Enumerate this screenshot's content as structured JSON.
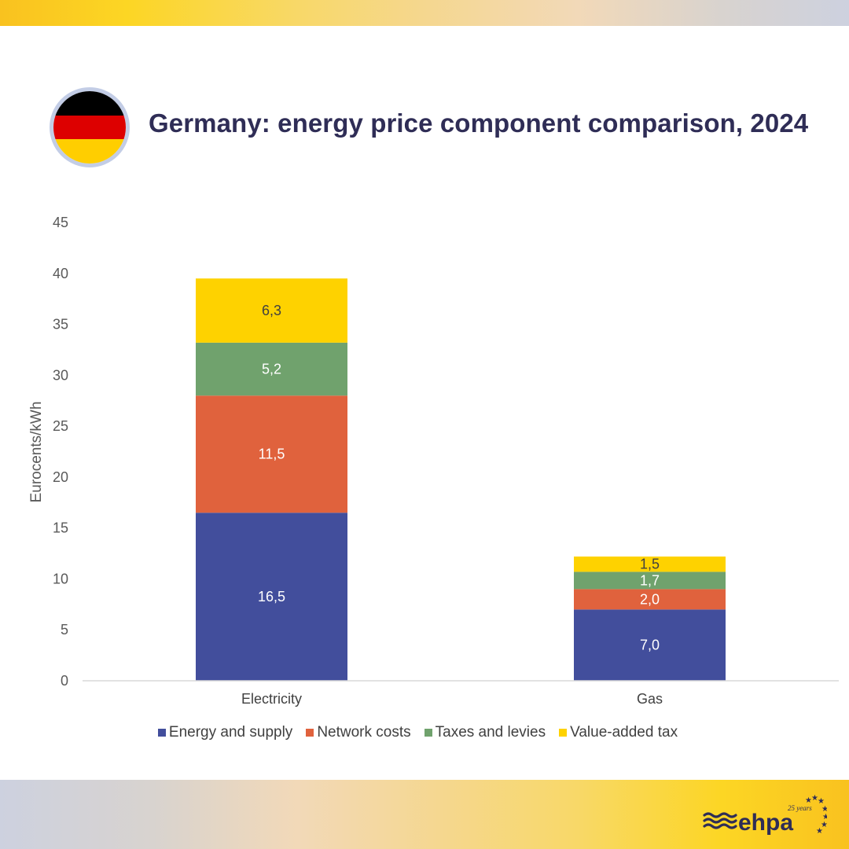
{
  "header": {
    "title": "Germany: energy price component comparison, 2024",
    "flag": {
      "icon": "germany-flag-icon",
      "stripes": [
        "#000000",
        "#dd0000",
        "#ffce00"
      ],
      "border_color": "#c3cde6"
    }
  },
  "chart_data": {
    "type": "bar",
    "stacked": true,
    "title": "Germany: energy price component comparison, 2024",
    "xlabel": "",
    "ylabel": "Eurocents/kWh",
    "ylim": [
      0,
      45
    ],
    "yticks": [
      0,
      5,
      10,
      15,
      20,
      25,
      30,
      35,
      40,
      45
    ],
    "ytick_labels": [
      "0",
      "5",
      "10",
      "15",
      "20",
      "25",
      "30",
      "35",
      "40",
      "45"
    ],
    "grid": false,
    "categories": [
      "Electricity",
      "Gas"
    ],
    "series": [
      {
        "name": "Energy and supply",
        "color": "#424e9c",
        "label_color": "#ffffff",
        "values": [
          16.5,
          7.0
        ],
        "labels": [
          "16,5",
          "7,0"
        ]
      },
      {
        "name": "Network costs",
        "color": "#e0623d",
        "label_color": "#ffffff",
        "values": [
          11.5,
          2.0
        ],
        "labels": [
          "11,5",
          "2,0"
        ]
      },
      {
        "name": "Taxes and levies",
        "color": "#70a26d",
        "label_color": "#ffffff",
        "values": [
          5.2,
          1.7
        ],
        "labels": [
          "5,2",
          "1,7"
        ]
      },
      {
        "name": "Value-added tax",
        "color": "#fed200",
        "label_color": "#404040",
        "values": [
          6.3,
          1.5
        ],
        "labels": [
          "6,3",
          "1,5"
        ]
      }
    ],
    "legend_position": "bottom"
  },
  "footer": {
    "logo_text": "ehpa",
    "logo_badge": "25 years",
    "logo_color": "#2f2d56"
  }
}
